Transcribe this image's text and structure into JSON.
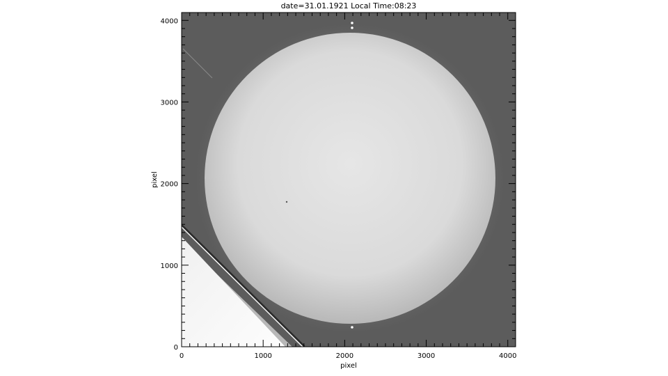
{
  "chart_data": {
    "type": "image",
    "title": "date=31.01.1921 Local Time:08:23",
    "xlabel": "pixel",
    "ylabel": "pixel",
    "xlim": [
      0,
      4096
    ],
    "ylim": [
      0,
      4096
    ],
    "xticks": [
      "0",
      "1000",
      "2000",
      "3000",
      "4000"
    ],
    "yticks": [
      "0",
      "1000",
      "2000",
      "3000",
      "4000"
    ],
    "colormap": "grayscale",
    "grid": false
  }
}
